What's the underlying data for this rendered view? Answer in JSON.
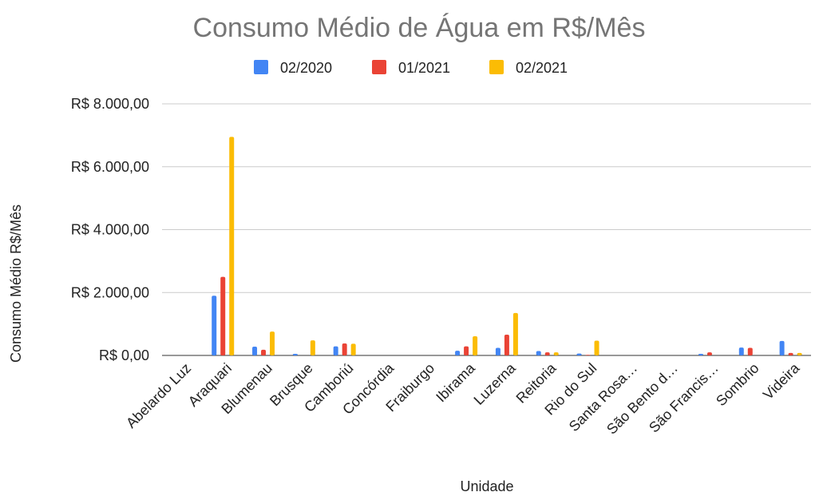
{
  "chart_data": {
    "type": "bar",
    "title": "Consumo Médio de Água em R$/Mês",
    "x_label": "Unidade",
    "y_label": "Consumo Médio R$/Mês",
    "categories": [
      "Abelardo Luz",
      "Araquari",
      "Blumenau",
      "Brusque",
      "Camboriú",
      "Concórdia",
      "Fraiburgo",
      "Ibirama",
      "Luzerna",
      "Reitoria",
      "Rio do Sul",
      "Santa Rosa…",
      "São Bento d…",
      "São Francis…",
      "Sombrio",
      "Videira"
    ],
    "series": [
      {
        "name": "02/2020",
        "color": "#4285f4",
        "values": [
          0,
          1900,
          280,
          50,
          290,
          0,
          0,
          150,
          240,
          140,
          60,
          0,
          0,
          50,
          250,
          460
        ]
      },
      {
        "name": "01/2021",
        "color": "#ea4335",
        "values": [
          0,
          2500,
          180,
          0,
          380,
          0,
          0,
          290,
          660,
          100,
          20,
          0,
          0,
          100,
          240,
          80
        ]
      },
      {
        "name": "02/2021",
        "color": "#fbbc04",
        "values": [
          0,
          6950,
          760,
          480,
          370,
          0,
          0,
          610,
          1350,
          100,
          470,
          0,
          0,
          0,
          0,
          80
        ]
      }
    ],
    "ylim": [
      0,
      8000
    ],
    "yticks": [
      {
        "value": 0,
        "label": "R$ 0,00"
      },
      {
        "value": 2000,
        "label": "R$ 2.000,00"
      },
      {
        "value": 4000,
        "label": "R$ 4.000,00"
      },
      {
        "value": 6000,
        "label": "R$ 6.000,00"
      },
      {
        "value": 8000,
        "label": "R$ 8.000,00"
      }
    ],
    "grid": true,
    "legend": "top"
  }
}
